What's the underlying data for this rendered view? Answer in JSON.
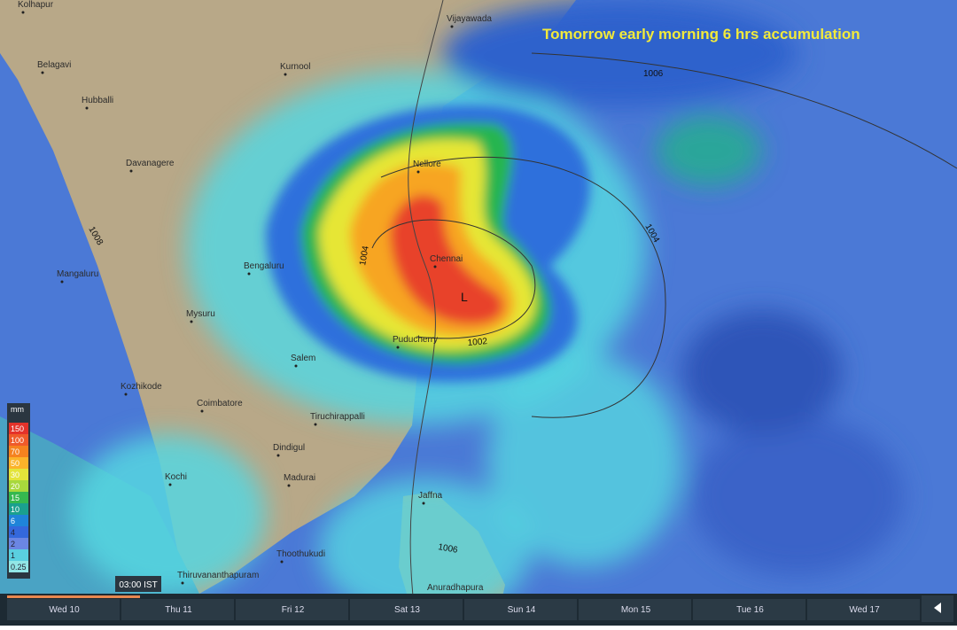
{
  "title": "Tomorrow early morning 6 hrs accumulation",
  "cities": [
    "Kolhapur",
    "Vijayawada",
    "Belagavi",
    "Kurnool",
    "Hubballi",
    "Davanagere",
    "Nellore",
    "Bengaluru",
    "Chennai",
    "Mangaluru",
    "Mysuru",
    "Puducherry",
    "Salem",
    "Kozhikode",
    "Coimbatore",
    "Tiruchirappalli",
    "Dindigul",
    "Kochi",
    "Madurai",
    "Jaffna",
    "Thoothukudi",
    "Thiruvananthapuram",
    "Anuradhapura"
  ],
  "isobars": [
    "1006",
    "1008",
    "1004",
    "1004",
    "1002",
    "1006"
  ],
  "pressure_center": "L",
  "legend": {
    "unit": "mm",
    "levels": [
      "150",
      "100",
      "70",
      "50",
      "30",
      "20",
      "15",
      "10",
      "6",
      "4",
      "2",
      "1",
      "0.25"
    ]
  },
  "timeline": {
    "current_time": "03:00 IST",
    "days": [
      "Wed 10",
      "Thu 11",
      "Fri 12",
      "Sat 13",
      "Sun 14",
      "Mon 15",
      "Tue 16",
      "Wed 17"
    ]
  }
}
